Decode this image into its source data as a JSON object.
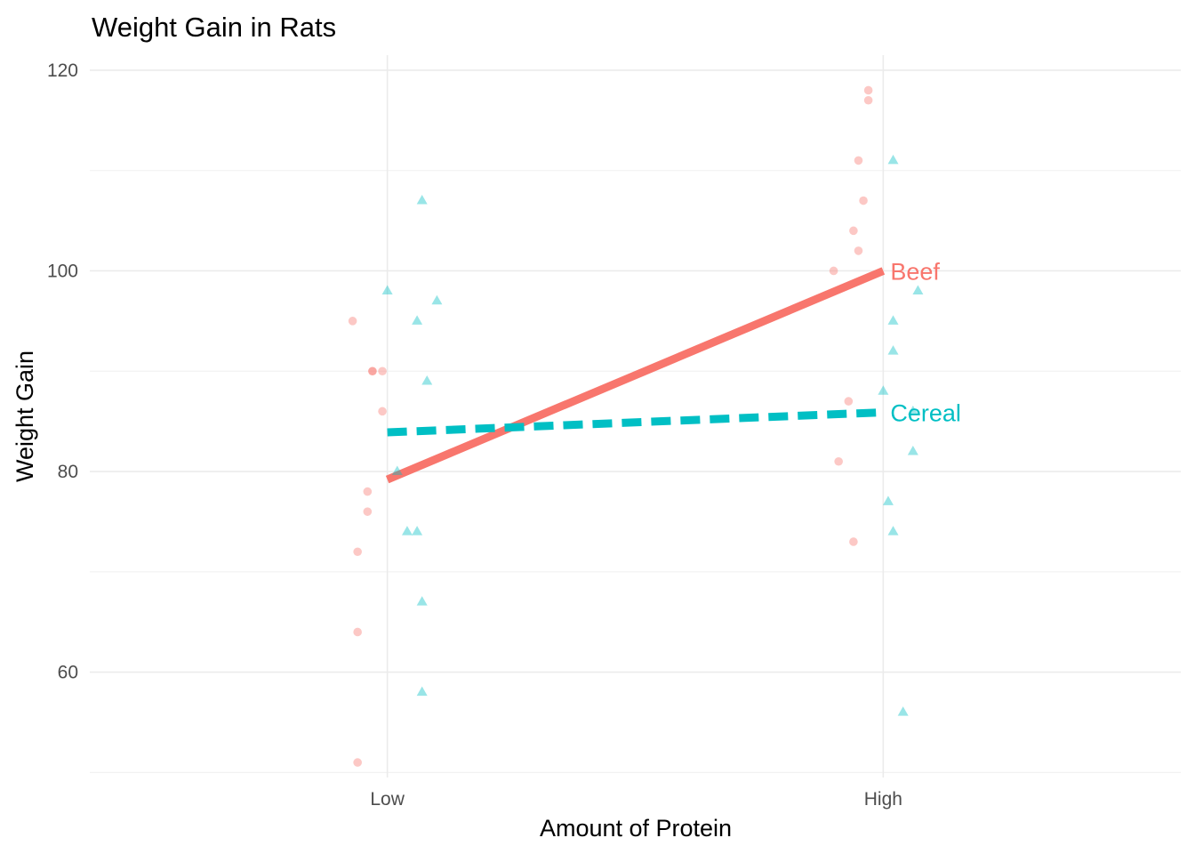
{
  "chart_data": {
    "type": "scatter",
    "title": "Weight Gain in Rats",
    "xlabel": "Amount of Protein",
    "ylabel": "Weight Gain",
    "categories": [
      "Low",
      "High"
    ],
    "ylim": [
      49.5,
      121.5
    ],
    "yticks": [
      60,
      80,
      100,
      120
    ],
    "grid": true,
    "legend": "none",
    "series": [
      {
        "name": "Beef",
        "color": "#F8766D",
        "marker": "circle",
        "line_style": "solid",
        "line": [
          79.2,
          100.0
        ],
        "points": [
          {
            "x": "Low",
            "jitter": -0.07,
            "y": 95
          },
          {
            "x": "Low",
            "jitter": -0.03,
            "y": 90
          },
          {
            "x": "Low",
            "jitter": -0.03,
            "y": 90
          },
          {
            "x": "Low",
            "jitter": -0.01,
            "y": 90
          },
          {
            "x": "Low",
            "jitter": -0.01,
            "y": 86
          },
          {
            "x": "Low",
            "jitter": -0.04,
            "y": 78
          },
          {
            "x": "Low",
            "jitter": -0.04,
            "y": 76
          },
          {
            "x": "Low",
            "jitter": -0.06,
            "y": 72
          },
          {
            "x": "Low",
            "jitter": -0.06,
            "y": 64
          },
          {
            "x": "Low",
            "jitter": -0.06,
            "y": 51
          },
          {
            "x": "High",
            "jitter": -0.03,
            "y": 117
          },
          {
            "x": "High",
            "jitter": -0.03,
            "y": 118
          },
          {
            "x": "High",
            "jitter": -0.05,
            "y": 111
          },
          {
            "x": "High",
            "jitter": -0.04,
            "y": 107
          },
          {
            "x": "High",
            "jitter": -0.06,
            "y": 104
          },
          {
            "x": "High",
            "jitter": -0.05,
            "y": 102
          },
          {
            "x": "High",
            "jitter": -0.1,
            "y": 100
          },
          {
            "x": "High",
            "jitter": -0.07,
            "y": 87
          },
          {
            "x": "High",
            "jitter": -0.09,
            "y": 81
          },
          {
            "x": "High",
            "jitter": -0.06,
            "y": 73
          }
        ]
      },
      {
        "name": "Cereal",
        "color": "#00BFC4",
        "marker": "triangle",
        "line_style": "dashed",
        "line": [
          83.9,
          85.9
        ],
        "points": [
          {
            "x": "Low",
            "jitter": 0.07,
            "y": 107
          },
          {
            "x": "Low",
            "jitter": 0.0,
            "y": 98
          },
          {
            "x": "Low",
            "jitter": 0.1,
            "y": 97
          },
          {
            "x": "Low",
            "jitter": 0.06,
            "y": 95
          },
          {
            "x": "Low",
            "jitter": 0.08,
            "y": 89
          },
          {
            "x": "Low",
            "jitter": 0.02,
            "y": 80
          },
          {
            "x": "Low",
            "jitter": 0.04,
            "y": 74
          },
          {
            "x": "Low",
            "jitter": 0.06,
            "y": 74
          },
          {
            "x": "Low",
            "jitter": 0.07,
            "y": 67
          },
          {
            "x": "Low",
            "jitter": 0.07,
            "y": 58
          },
          {
            "x": "High",
            "jitter": 0.02,
            "y": 111
          },
          {
            "x": "High",
            "jitter": 0.07,
            "y": 98
          },
          {
            "x": "High",
            "jitter": 0.02,
            "y": 95
          },
          {
            "x": "High",
            "jitter": 0.02,
            "y": 92
          },
          {
            "x": "High",
            "jitter": 0.0,
            "y": 88
          },
          {
            "x": "High",
            "jitter": 0.06,
            "y": 86
          },
          {
            "x": "High",
            "jitter": 0.06,
            "y": 82
          },
          {
            "x": "High",
            "jitter": 0.01,
            "y": 77
          },
          {
            "x": "High",
            "jitter": 0.02,
            "y": 74
          },
          {
            "x": "High",
            "jitter": 0.04,
            "y": 56
          }
        ]
      }
    ]
  }
}
